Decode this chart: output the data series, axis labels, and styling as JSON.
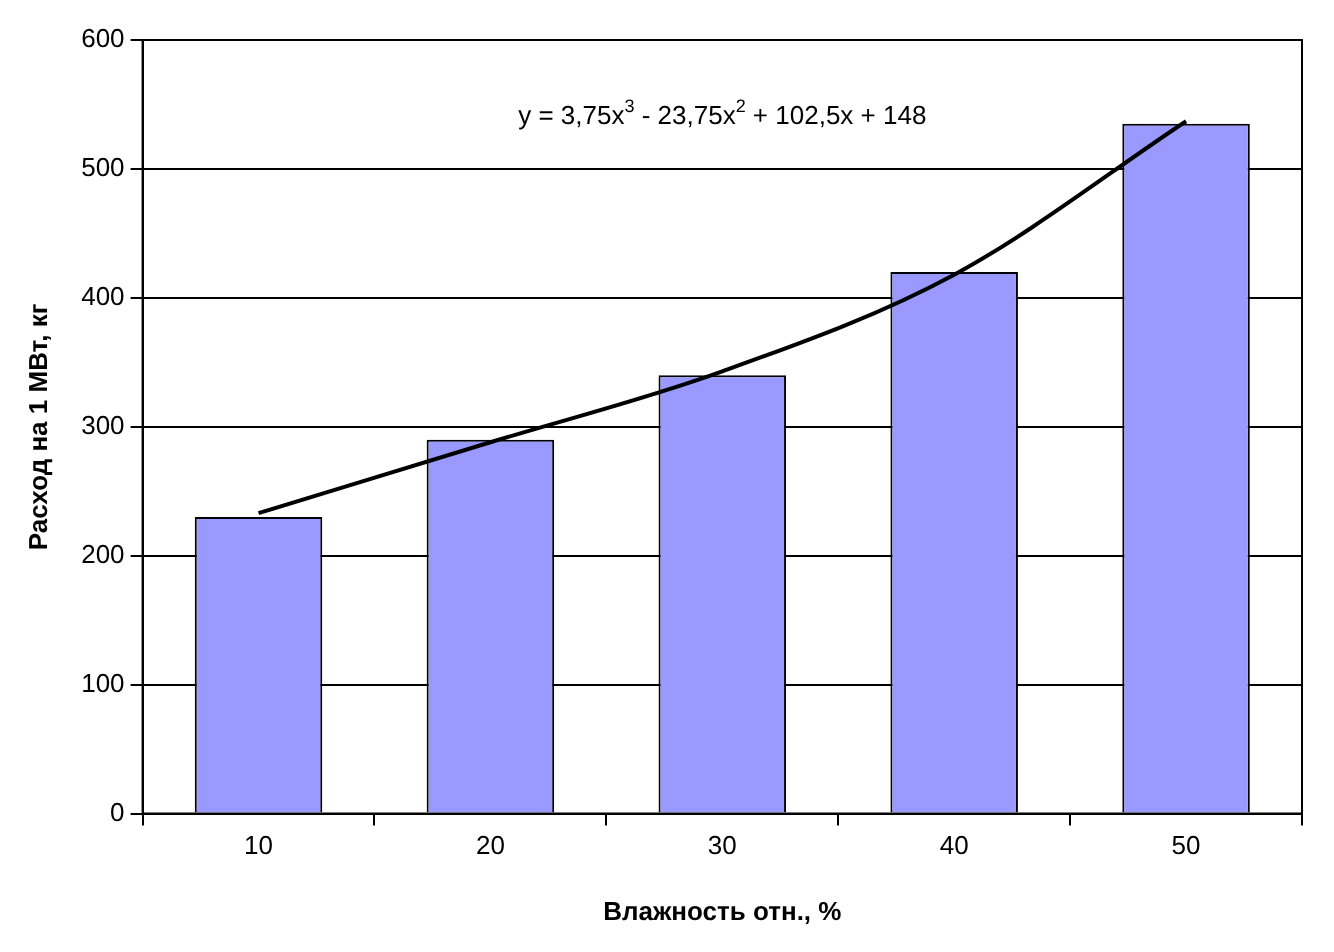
{
  "chart_data": {
    "type": "bar",
    "xlabel": "Влажность отн., %",
    "ylabel": "Расход на 1 МВт, кг",
    "categories": [
      "10",
      "20",
      "30",
      "40",
      "50"
    ],
    "series": [
      {
        "color": "#9999ff",
        "values": [
          230,
          290,
          340,
          420,
          535
        ]
      },
      {
        "type": "line",
        "color": "#000000",
        "values": [
          233,
          288,
          343,
          418,
          537
        ]
      }
    ],
    "ylim": [
      0,
      600
    ],
    "yticks": [
      0,
      100,
      200,
      300,
      400,
      500,
      600
    ],
    "grid": "y",
    "legend": false,
    "marker": "none",
    "line_style": "solid",
    "annotations": [
      "y = 3,75x$^{3}$ - 23,75x$^{2}$ + 102,5x + 148"
    ]
  }
}
